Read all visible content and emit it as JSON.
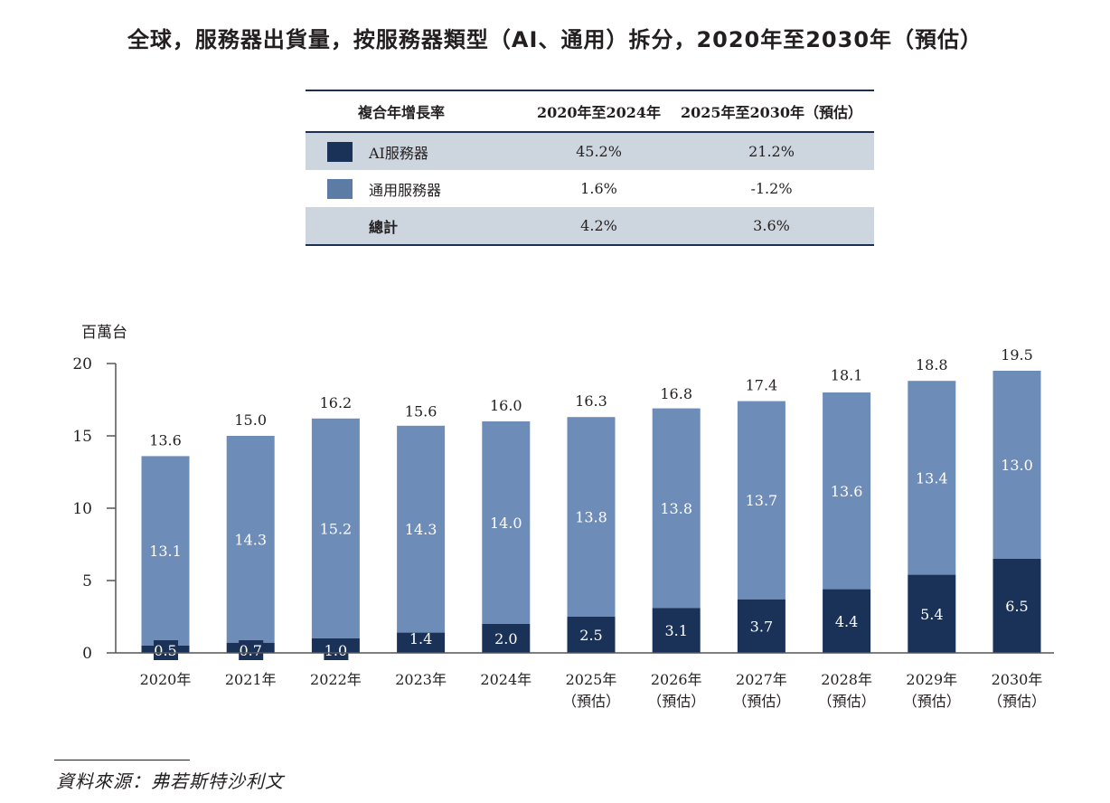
{
  "title": "全球，服務器出貨量，按服務器類型（AI、通用）拆分，2020年至2030年（預估）",
  "cagr_table": {
    "header": [
      "複合年增長率",
      "2020年至2024年",
      "2025年至2030年（預估）"
    ],
    "rows": [
      {
        "label": "AI服務器",
        "swatch_color": "#1a3158",
        "v1": "45.2%",
        "v2": "21.2%"
      },
      {
        "label": "通用服務器",
        "swatch_color": "#5c7ca6",
        "v1": "1.6%",
        "v2": "-1.2%"
      },
      {
        "label": "總計",
        "swatch_color": "",
        "v1": "4.2%",
        "v2": "3.6%"
      }
    ]
  },
  "chart_data": {
    "type": "bar",
    "stacked": true,
    "title": "全球，服務器出貨量，按服務器類型（AI、通用）拆分，2020年至2030年（預估）",
    "ylabel": "百萬台",
    "xlabel": "",
    "ylim": [
      0,
      20
    ],
    "yticks": [
      0,
      5,
      10,
      15,
      20
    ],
    "grid": false,
    "categories": [
      [
        "2020年"
      ],
      [
        "2021年"
      ],
      [
        "2022年"
      ],
      [
        "2023年"
      ],
      [
        "2024年"
      ],
      [
        "2025年",
        "（預估）"
      ],
      [
        "2026年",
        "（預估）"
      ],
      [
        "2027年",
        "（預估）"
      ],
      [
        "2028年",
        "（預估）"
      ],
      [
        "2029年",
        "（預估）"
      ],
      [
        "2030年",
        "（預估）"
      ]
    ],
    "series": [
      {
        "name": "AI服務器",
        "color": "#1a3158",
        "values": [
          0.5,
          0.7,
          1.0,
          1.4,
          2.0,
          2.5,
          3.1,
          3.7,
          4.4,
          5.4,
          6.5
        ]
      },
      {
        "name": "通用服務器",
        "color": "#6e8cb8",
        "values": [
          13.1,
          14.3,
          15.2,
          14.3,
          14.0,
          13.8,
          13.8,
          13.7,
          13.6,
          13.4,
          13.0
        ]
      }
    ],
    "totals": [
      13.6,
      15.0,
      16.2,
      15.6,
      16.0,
      16.3,
      16.8,
      17.4,
      18.1,
      18.8,
      19.5
    ],
    "legend": "table-above"
  },
  "source": "資料來源：弗若斯特沙利文"
}
